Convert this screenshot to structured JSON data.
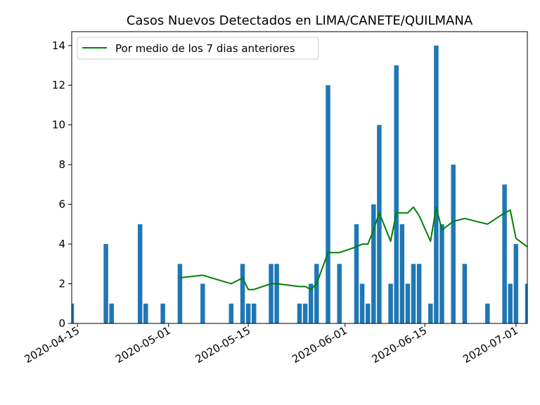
{
  "chart_data": {
    "type": "bar",
    "title": "Casos Nuevos Detectados en LIMA/CANETE/QUILMANA",
    "xlabel": "",
    "ylabel": "",
    "x_ticks": [
      "2020-04-15",
      "2020-05-01",
      "2020-05-15",
      "2020-06-01",
      "2020-06-15",
      "2020-07-01"
    ],
    "y_ticks": [
      0,
      2,
      4,
      6,
      8,
      10,
      12,
      14
    ],
    "xlim": [
      "2020-04-14",
      "2020-07-03"
    ],
    "ylim": [
      0,
      14.7
    ],
    "grid": false,
    "legend_position": "upper-left",
    "bar_color": "#1f77b4",
    "line_color": "#008000",
    "bars": {
      "x": [
        "2020-04-14",
        "2020-04-20",
        "2020-04-21",
        "2020-04-26",
        "2020-04-27",
        "2020-04-30",
        "2020-05-03",
        "2020-05-07",
        "2020-05-12",
        "2020-05-14",
        "2020-05-15",
        "2020-05-16",
        "2020-05-19",
        "2020-05-20",
        "2020-05-24",
        "2020-05-25",
        "2020-05-26",
        "2020-05-27",
        "2020-05-29",
        "2020-05-31",
        "2020-06-03",
        "2020-06-04",
        "2020-06-05",
        "2020-06-06",
        "2020-06-07",
        "2020-06-09",
        "2020-06-10",
        "2020-06-11",
        "2020-06-12",
        "2020-06-13",
        "2020-06-14",
        "2020-06-16",
        "2020-06-17",
        "2020-06-18",
        "2020-06-20",
        "2020-06-22",
        "2020-06-26",
        "2020-06-29",
        "2020-06-30",
        "2020-07-01",
        "2020-07-03"
      ],
      "values": [
        1,
        4,
        1,
        5,
        1,
        1,
        3,
        2,
        1,
        3,
        1,
        1,
        3,
        3,
        1,
        1,
        2,
        3,
        12,
        3,
        5,
        2,
        1,
        6,
        10,
        2,
        13,
        5,
        2,
        3,
        3,
        1,
        14,
        5,
        8,
        3,
        1,
        7,
        2,
        4,
        2
      ]
    },
    "series": [
      {
        "name": "Por medio de los 7 dias anteriores",
        "x": [
          "2020-05-03",
          "2020-05-07",
          "2020-05-12",
          "2020-05-14",
          "2020-05-15",
          "2020-05-16",
          "2020-05-19",
          "2020-05-20",
          "2020-05-24",
          "2020-05-25",
          "2020-05-26",
          "2020-05-27",
          "2020-05-29",
          "2020-05-31",
          "2020-06-03",
          "2020-06-04",
          "2020-06-05",
          "2020-06-06",
          "2020-06-07",
          "2020-06-09",
          "2020-06-10",
          "2020-06-11",
          "2020-06-12",
          "2020-06-13",
          "2020-06-14",
          "2020-06-16",
          "2020-06-17",
          "2020-06-18",
          "2020-06-20",
          "2020-06-22",
          "2020-06-26",
          "2020-06-29",
          "2020-06-30",
          "2020-07-01",
          "2020-07-03"
        ],
        "values": [
          2.3,
          2.43,
          2.0,
          2.29,
          1.71,
          1.71,
          2.0,
          2.0,
          1.86,
          1.86,
          1.71,
          2.0,
          3.57,
          3.57,
          3.86,
          4.0,
          4.0,
          4.71,
          5.57,
          4.14,
          5.57,
          5.57,
          5.57,
          5.86,
          5.43,
          4.14,
          5.86,
          4.71,
          5.14,
          5.29,
          5.0,
          5.57,
          5.71,
          4.29,
          3.86
        ]
      }
    ]
  }
}
